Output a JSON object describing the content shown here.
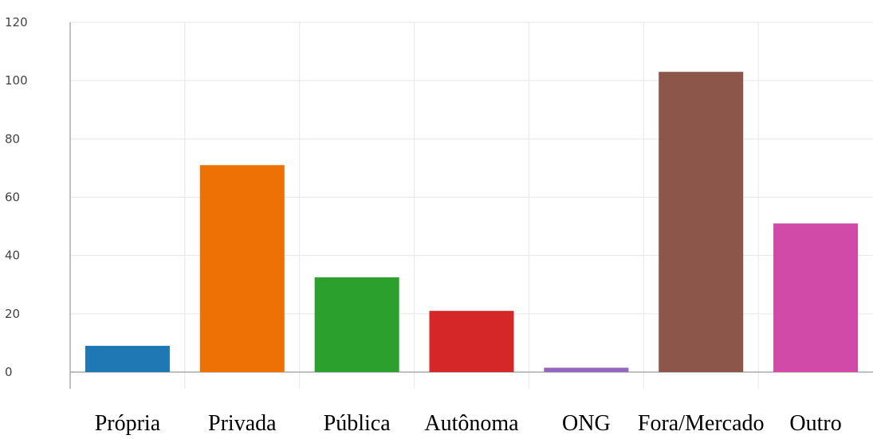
{
  "chart_data": {
    "type": "bar",
    "title": "",
    "xlabel": "",
    "ylabel": "",
    "categories": [
      "Própria",
      "Privada",
      "Pública",
      "Autônoma",
      "ONG",
      "Fora/Mercado",
      "Outro"
    ],
    "values": [
      9,
      71,
      32.5,
      21,
      1.5,
      103,
      51
    ],
    "colors": [
      "#1f77b4",
      "#ee7106",
      "#2ca02c",
      "#d62728",
      "#9467bd",
      "#8c564b",
      "#d14aa8"
    ],
    "ylim": [
      0,
      120
    ],
    "yticks": [
      "0",
      "20",
      "40",
      "60",
      "80",
      "100",
      "120"
    ],
    "grid": true,
    "legend": "none"
  }
}
